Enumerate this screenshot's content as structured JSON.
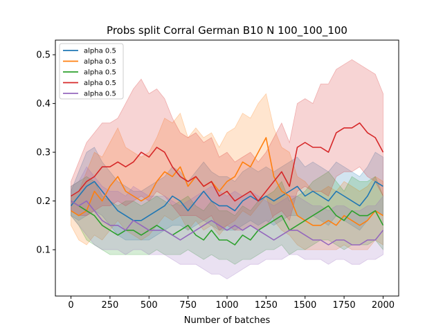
{
  "chart_data": {
    "type": "line",
    "title": "Probs split Corral German B10 N 100_100_100",
    "xlabel": "Number of batches",
    "ylabel": "",
    "xlim": [
      -100,
      2100
    ],
    "ylim": [
      0.005,
      0.53
    ],
    "xticks": [
      0,
      250,
      500,
      750,
      1000,
      1250,
      1500,
      1750,
      2000
    ],
    "yticks": [
      0.1,
      0.2,
      0.3,
      0.4,
      0.5
    ],
    "grid": false,
    "legend_position": "top-left",
    "x": [
      0,
      50,
      100,
      150,
      200,
      250,
      300,
      350,
      400,
      450,
      500,
      550,
      600,
      650,
      700,
      750,
      800,
      850,
      900,
      950,
      1000,
      1050,
      1100,
      1150,
      1200,
      1250,
      1300,
      1350,
      1400,
      1450,
      1500,
      1550,
      1600,
      1650,
      1700,
      1750,
      1800,
      1850,
      1900,
      1950,
      2000
    ],
    "series": [
      {
        "name": "alpha 0.5",
        "color": "#1f77b4",
        "values": [
          0.19,
          0.21,
          0.23,
          0.24,
          0.22,
          0.2,
          0.18,
          0.17,
          0.16,
          0.16,
          0.17,
          0.18,
          0.19,
          0.21,
          0.2,
          0.18,
          0.2,
          0.22,
          0.2,
          0.19,
          0.19,
          0.18,
          0.2,
          0.21,
          0.2,
          0.21,
          0.2,
          0.21,
          0.22,
          0.23,
          0.21,
          0.22,
          0.21,
          0.2,
          0.22,
          0.21,
          0.2,
          0.19,
          0.21,
          0.24,
          0.23
        ],
        "lower": [
          0.17,
          0.16,
          0.17,
          0.18,
          0.17,
          0.15,
          0.13,
          0.12,
          0.12,
          0.12,
          0.12,
          0.13,
          0.14,
          0.15,
          0.15,
          0.14,
          0.15,
          0.16,
          0.15,
          0.14,
          0.14,
          0.14,
          0.15,
          0.16,
          0.15,
          0.16,
          0.15,
          0.16,
          0.17,
          0.17,
          0.16,
          0.17,
          0.16,
          0.15,
          0.17,
          0.16,
          0.15,
          0.14,
          0.16,
          0.18,
          0.17
        ],
        "upper": [
          0.22,
          0.26,
          0.3,
          0.31,
          0.28,
          0.26,
          0.24,
          0.23,
          0.22,
          0.22,
          0.23,
          0.24,
          0.25,
          0.27,
          0.26,
          0.24,
          0.26,
          0.28,
          0.26,
          0.25,
          0.25,
          0.24,
          0.26,
          0.27,
          0.26,
          0.27,
          0.26,
          0.27,
          0.28,
          0.29,
          0.27,
          0.28,
          0.27,
          0.26,
          0.28,
          0.27,
          0.26,
          0.25,
          0.27,
          0.3,
          0.29
        ]
      },
      {
        "name": "alpha 0.5",
        "color": "#ff7f0e",
        "values": [
          0.18,
          0.17,
          0.18,
          0.22,
          0.2,
          0.23,
          0.25,
          0.22,
          0.21,
          0.2,
          0.21,
          0.24,
          0.26,
          0.25,
          0.27,
          0.23,
          0.25,
          0.23,
          0.24,
          0.22,
          0.24,
          0.25,
          0.28,
          0.27,
          0.3,
          0.33,
          0.25,
          0.22,
          0.21,
          0.17,
          0.16,
          0.15,
          0.15,
          0.16,
          0.15,
          0.17,
          0.16,
          0.15,
          0.16,
          0.18,
          0.17
        ],
        "lower": [
          0.15,
          0.12,
          0.11,
          0.13,
          0.12,
          0.14,
          0.16,
          0.14,
          0.13,
          0.12,
          0.13,
          0.15,
          0.17,
          0.16,
          0.17,
          0.14,
          0.16,
          0.14,
          0.15,
          0.13,
          0.15,
          0.16,
          0.18,
          0.17,
          0.19,
          0.21,
          0.16,
          0.14,
          0.13,
          0.11,
          0.1,
          0.1,
          0.1,
          0.1,
          0.1,
          0.11,
          0.1,
          0.1,
          0.1,
          0.12,
          0.11
        ],
        "upper": [
          0.21,
          0.22,
          0.26,
          0.3,
          0.29,
          0.32,
          0.35,
          0.31,
          0.3,
          0.29,
          0.3,
          0.33,
          0.37,
          0.36,
          0.38,
          0.33,
          0.35,
          0.33,
          0.34,
          0.31,
          0.34,
          0.35,
          0.38,
          0.37,
          0.4,
          0.42,
          0.35,
          0.31,
          0.3,
          0.25,
          0.24,
          0.22,
          0.22,
          0.23,
          0.22,
          0.24,
          0.23,
          0.22,
          0.23,
          0.25,
          0.24
        ]
      },
      {
        "name": "alpha 0.5",
        "color": "#2ca02c",
        "values": [
          0.2,
          0.19,
          0.18,
          0.17,
          0.15,
          0.14,
          0.13,
          0.14,
          0.14,
          0.13,
          0.14,
          0.15,
          0.14,
          0.13,
          0.14,
          0.15,
          0.13,
          0.12,
          0.14,
          0.12,
          0.12,
          0.11,
          0.13,
          0.12,
          0.14,
          0.15,
          0.16,
          0.17,
          0.14,
          0.15,
          0.16,
          0.17,
          0.18,
          0.19,
          0.17,
          0.16,
          0.18,
          0.17,
          0.17,
          0.18,
          0.15
        ],
        "lower": [
          0.17,
          0.15,
          0.12,
          0.11,
          0.1,
          0.09,
          0.09,
          0.09,
          0.09,
          0.09,
          0.09,
          0.1,
          0.09,
          0.09,
          0.09,
          0.1,
          0.09,
          0.08,
          0.09,
          0.08,
          0.08,
          0.07,
          0.08,
          0.08,
          0.09,
          0.1,
          0.1,
          0.11,
          0.09,
          0.1,
          0.1,
          0.11,
          0.12,
          0.12,
          0.11,
          0.1,
          0.11,
          0.11,
          0.11,
          0.12,
          0.1
        ],
        "upper": [
          0.23,
          0.24,
          0.25,
          0.24,
          0.21,
          0.2,
          0.19,
          0.2,
          0.2,
          0.19,
          0.2,
          0.21,
          0.2,
          0.19,
          0.2,
          0.21,
          0.19,
          0.18,
          0.2,
          0.18,
          0.18,
          0.17,
          0.19,
          0.18,
          0.2,
          0.21,
          0.22,
          0.24,
          0.2,
          0.21,
          0.22,
          0.24,
          0.25,
          0.26,
          0.24,
          0.22,
          0.25,
          0.24,
          0.24,
          0.25,
          0.21
        ]
      },
      {
        "name": "alpha 0.5",
        "color": "#d62728",
        "values": [
          0.21,
          0.22,
          0.24,
          0.25,
          0.27,
          0.27,
          0.28,
          0.27,
          0.28,
          0.3,
          0.29,
          0.31,
          0.3,
          0.27,
          0.25,
          0.24,
          0.25,
          0.23,
          0.24,
          0.21,
          0.22,
          0.2,
          0.21,
          0.22,
          0.2,
          0.22,
          0.24,
          0.26,
          0.23,
          0.31,
          0.32,
          0.31,
          0.31,
          0.3,
          0.34,
          0.35,
          0.35,
          0.36,
          0.34,
          0.33,
          0.3
        ],
        "lower": [
          0.18,
          0.17,
          0.17,
          0.18,
          0.19,
          0.19,
          0.2,
          0.19,
          0.2,
          0.21,
          0.2,
          0.22,
          0.21,
          0.19,
          0.17,
          0.17,
          0.17,
          0.16,
          0.17,
          0.14,
          0.15,
          0.14,
          0.14,
          0.15,
          0.14,
          0.15,
          0.17,
          0.18,
          0.16,
          0.22,
          0.23,
          0.22,
          0.22,
          0.21,
          0.25,
          0.26,
          0.26,
          0.27,
          0.25,
          0.24,
          0.21
        ],
        "upper": [
          0.24,
          0.28,
          0.32,
          0.34,
          0.36,
          0.36,
          0.37,
          0.4,
          0.43,
          0.45,
          0.42,
          0.43,
          0.41,
          0.37,
          0.34,
          0.33,
          0.34,
          0.32,
          0.33,
          0.29,
          0.3,
          0.28,
          0.29,
          0.3,
          0.28,
          0.3,
          0.33,
          0.36,
          0.32,
          0.4,
          0.41,
          0.4,
          0.44,
          0.44,
          0.47,
          0.48,
          0.49,
          0.48,
          0.47,
          0.46,
          0.42
        ]
      },
      {
        "name": "alpha 0.5",
        "color": "#9467bd",
        "values": [
          0.2,
          0.19,
          0.2,
          0.18,
          0.16,
          0.15,
          0.15,
          0.14,
          0.16,
          0.15,
          0.14,
          0.14,
          0.14,
          0.13,
          0.12,
          0.13,
          0.14,
          0.15,
          0.16,
          0.15,
          0.14,
          0.15,
          0.14,
          0.15,
          0.14,
          0.13,
          0.12,
          0.13,
          0.14,
          0.14,
          0.13,
          0.12,
          0.12,
          0.11,
          0.12,
          0.12,
          0.11,
          0.11,
          0.12,
          0.12,
          0.14
        ],
        "lower": [
          0.17,
          0.15,
          0.13,
          0.11,
          0.1,
          0.1,
          0.1,
          0.09,
          0.1,
          0.1,
          0.09,
          0.09,
          0.09,
          0.08,
          0.07,
          0.07,
          0.07,
          0.06,
          0.05,
          0.05,
          0.04,
          0.05,
          0.06,
          0.07,
          0.07,
          0.08,
          0.08,
          0.08,
          0.09,
          0.09,
          0.08,
          0.08,
          0.08,
          0.07,
          0.08,
          0.08,
          0.07,
          0.07,
          0.08,
          0.08,
          0.09
        ],
        "upper": [
          0.23,
          0.24,
          0.27,
          0.25,
          0.23,
          0.22,
          0.22,
          0.21,
          0.23,
          0.22,
          0.21,
          0.21,
          0.21,
          0.2,
          0.19,
          0.2,
          0.21,
          0.22,
          0.23,
          0.22,
          0.21,
          0.22,
          0.21,
          0.22,
          0.21,
          0.2,
          0.19,
          0.2,
          0.21,
          0.21,
          0.2,
          0.19,
          0.19,
          0.18,
          0.19,
          0.19,
          0.18,
          0.18,
          0.19,
          0.19,
          0.21
        ]
      }
    ]
  }
}
